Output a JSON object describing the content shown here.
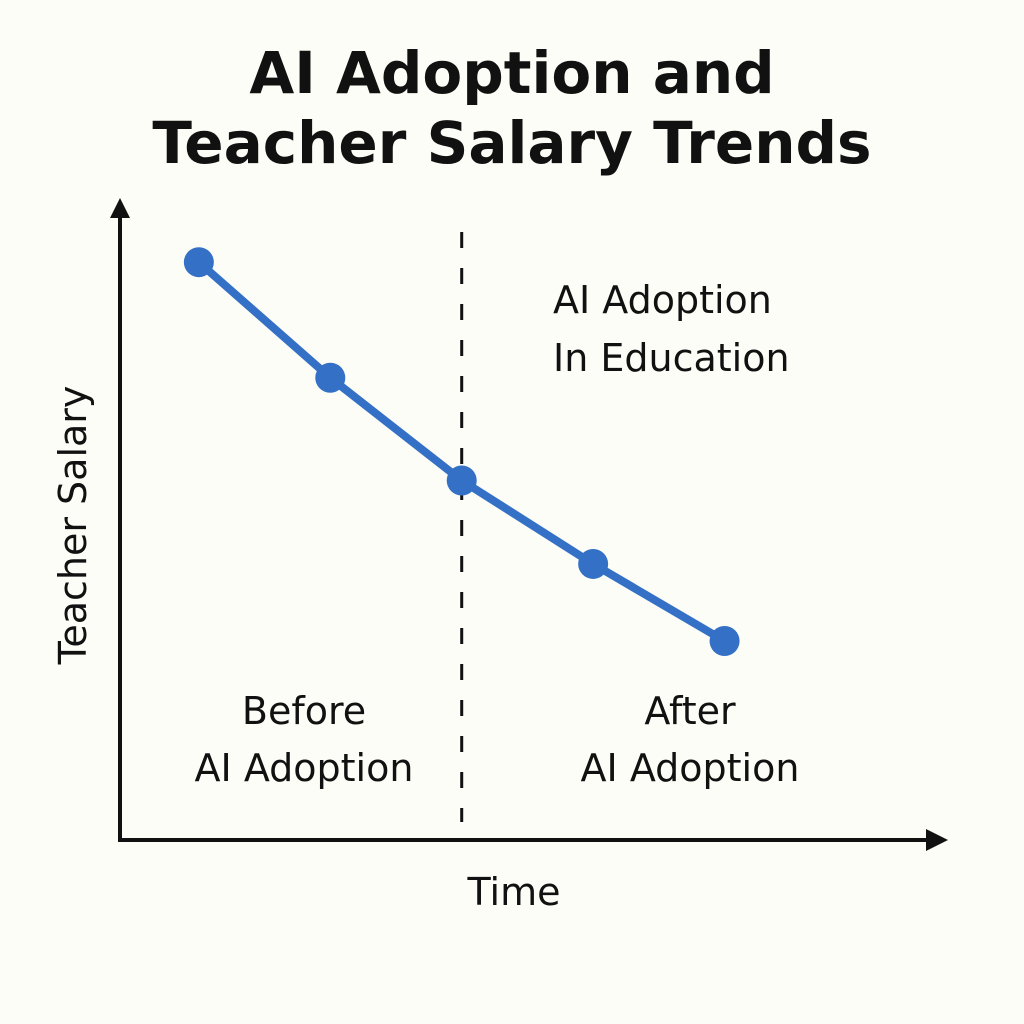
{
  "chart_data": {
    "type": "line",
    "title_lines": [
      "AI Adoption and",
      "Teacher Salary Trends"
    ],
    "xlabel": "Time",
    "ylabel": "Teacher Salary",
    "x": [
      1,
      2,
      3,
      4,
      5
    ],
    "y": [
      90,
      72,
      56,
      43,
      31
    ],
    "xlim": [
      0.4,
      6.7
    ],
    "ylim": [
      0,
      100
    ],
    "axis_ticks": false,
    "grid": false,
    "line_color": "#3470c6",
    "divider": {
      "x": 3,
      "style": "dashed",
      "label_lines": [
        "AI Adoption",
        "In Education"
      ]
    },
    "region_labels": [
      {
        "lines": [
          "Before",
          "AI Adoption"
        ]
      },
      {
        "lines": [
          "After",
          "AI Adoption"
        ]
      }
    ]
  }
}
